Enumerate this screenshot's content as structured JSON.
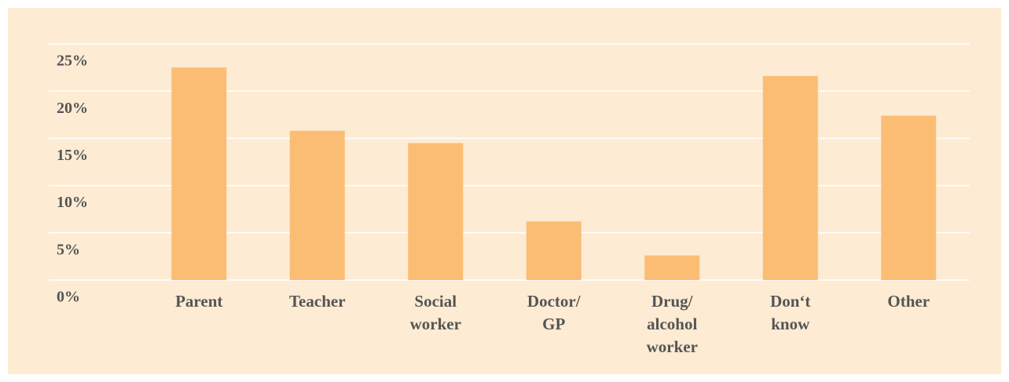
{
  "chart_data": {
    "type": "bar",
    "categories": [
      "Parent",
      "Teacher",
      "Social worker",
      "Doctor/ GP",
      "Drug/ alcohol worker",
      "Don‘t know",
      "Other"
    ],
    "values": [
      22.5,
      15.8,
      14.5,
      6.2,
      2.6,
      21.6,
      17.4
    ],
    "color": "#fbbd74",
    "ylim": [
      0,
      25
    ],
    "yticks": [
      {
        "value": 0,
        "label": "0%"
      },
      {
        "value": 5,
        "label": "5%"
      },
      {
        "value": 10,
        "label": "10%"
      },
      {
        "value": 15,
        "label": "15%"
      },
      {
        "value": 20,
        "label": "20%"
      },
      {
        "value": 25,
        "label": "25%"
      }
    ],
    "grid": true
  }
}
